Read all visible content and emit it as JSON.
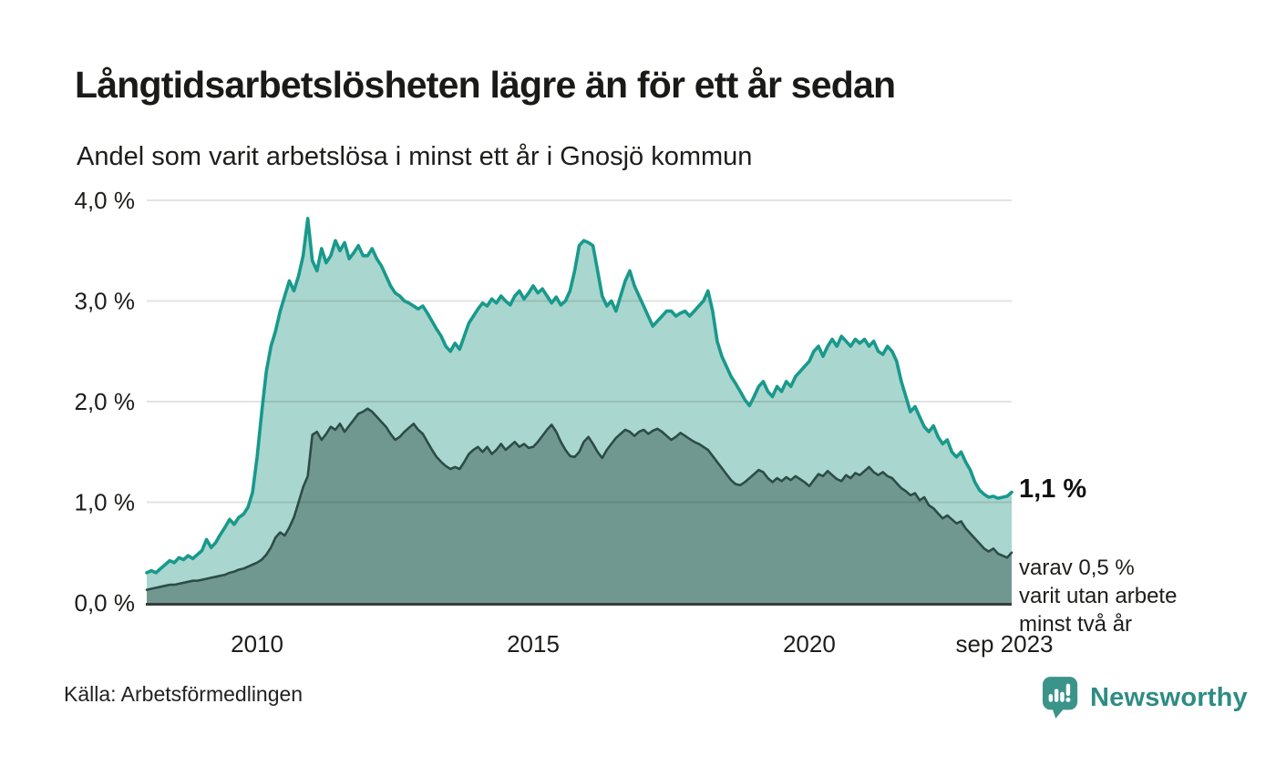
{
  "header": {
    "title": "Långtidsarbetslösheten lägre än för ett år sedan",
    "subtitle": "Andel som varit arbetslösa i minst ett år i Gnosjö kommun"
  },
  "annotation": {
    "value_label": "1,1 %",
    "note_lines": [
      "varav 0,5 %",
      "varit utan arbete",
      "minst två år"
    ]
  },
  "footer": {
    "source": "Källa: Arbetsförmedlingen",
    "brand": "Newsworthy"
  },
  "colors": {
    "series1_line": "#18998C",
    "series1_fill": "#A9D6CE",
    "series2_line": "#2C4C47",
    "series2_fill": "#719890",
    "gridline": "rgba(0,0,0,0.11)",
    "axis": "#3a3a3a",
    "brand_teal": "#3B948A",
    "text": "#1d1d1b"
  },
  "chart_data": {
    "type": "area",
    "title": "Långtidsarbetslösheten lägre än för ett år sedan",
    "subtitle": "Andel som varit arbetslösa i minst ett år i Gnosjö kommun",
    "unit": "%",
    "frequency": "monthly",
    "start": "2008-01",
    "end": "2023-09",
    "ylim": [
      0,
      4
    ],
    "grid": true,
    "legend_position": "none",
    "y_ticks": [
      {
        "value": 4,
        "label": "4,0 %"
      },
      {
        "value": 3,
        "label": "3,0 %"
      },
      {
        "value": 2,
        "label": "2,0 %"
      },
      {
        "value": 1,
        "label": "1,0 %"
      },
      {
        "value": 0,
        "label": "0,0 %"
      }
    ],
    "x_ticks": [
      {
        "index": 24,
        "label": "2010"
      },
      {
        "index": 84,
        "label": "2015"
      },
      {
        "index": 144,
        "label": "2020"
      },
      {
        "index": 188,
        "label": "sep 2023"
      }
    ],
    "end_labels": {
      "series1": "1,1 %",
      "series2": "0,5 %"
    },
    "series": [
      {
        "name": "Andel arbetslösa minst ett år",
        "color": "#18998C",
        "fill": "#A9D6CE",
        "values": [
          0.3,
          0.32,
          0.3,
          0.34,
          0.38,
          0.42,
          0.4,
          0.45,
          0.43,
          0.47,
          0.44,
          0.48,
          0.52,
          0.63,
          0.55,
          0.6,
          0.68,
          0.75,
          0.83,
          0.78,
          0.85,
          0.88,
          0.95,
          1.1,
          1.45,
          1.9,
          2.3,
          2.55,
          2.7,
          2.9,
          3.05,
          3.2,
          3.1,
          3.25,
          3.45,
          3.82,
          3.4,
          3.3,
          3.52,
          3.38,
          3.45,
          3.6,
          3.5,
          3.58,
          3.42,
          3.48,
          3.55,
          3.45,
          3.45,
          3.52,
          3.42,
          3.35,
          3.25,
          3.15,
          3.08,
          3.05,
          3.0,
          2.98,
          2.95,
          2.92,
          2.95,
          2.88,
          2.8,
          2.72,
          2.65,
          2.55,
          2.5,
          2.58,
          2.52,
          2.65,
          2.78,
          2.85,
          2.92,
          2.98,
          2.95,
          3.02,
          2.98,
          3.05,
          3.0,
          2.96,
          3.05,
          3.1,
          3.02,
          3.08,
          3.15,
          3.08,
          3.12,
          3.05,
          2.98,
          3.04,
          2.96,
          3.0,
          3.1,
          3.3,
          3.55,
          3.6,
          3.58,
          3.55,
          3.3,
          3.05,
          2.95,
          3.0,
          2.9,
          3.05,
          3.2,
          3.3,
          3.15,
          3.05,
          2.95,
          2.85,
          2.75,
          2.8,
          2.85,
          2.9,
          2.9,
          2.85,
          2.88,
          2.9,
          2.85,
          2.9,
          2.95,
          3.0,
          3.1,
          2.9,
          2.6,
          2.45,
          2.35,
          2.25,
          2.18,
          2.1,
          2.02,
          1.96,
          2.05,
          2.15,
          2.2,
          2.1,
          2.05,
          2.15,
          2.1,
          2.2,
          2.15,
          2.25,
          2.3,
          2.35,
          2.4,
          2.5,
          2.55,
          2.45,
          2.55,
          2.62,
          2.55,
          2.65,
          2.6,
          2.55,
          2.62,
          2.58,
          2.62,
          2.55,
          2.6,
          2.5,
          2.47,
          2.55,
          2.5,
          2.4,
          2.2,
          2.05,
          1.9,
          1.95,
          1.85,
          1.75,
          1.7,
          1.76,
          1.65,
          1.58,
          1.62,
          1.5,
          1.45,
          1.5,
          1.4,
          1.32,
          1.2,
          1.12,
          1.08,
          1.05,
          1.06,
          1.04,
          1.05,
          1.06,
          1.1
        ]
      },
      {
        "name": "varav arbetslösa minst två år",
        "color": "#2C4C47",
        "fill": "#719890",
        "values": [
          0.13,
          0.14,
          0.15,
          0.16,
          0.17,
          0.18,
          0.18,
          0.19,
          0.2,
          0.21,
          0.22,
          0.22,
          0.23,
          0.24,
          0.25,
          0.26,
          0.27,
          0.28,
          0.3,
          0.31,
          0.33,
          0.34,
          0.36,
          0.38,
          0.4,
          0.43,
          0.48,
          0.55,
          0.65,
          0.7,
          0.67,
          0.75,
          0.85,
          1.0,
          1.15,
          1.26,
          1.67,
          1.7,
          1.62,
          1.68,
          1.75,
          1.72,
          1.78,
          1.7,
          1.76,
          1.82,
          1.88,
          1.9,
          1.93,
          1.9,
          1.85,
          1.8,
          1.75,
          1.68,
          1.62,
          1.65,
          1.7,
          1.74,
          1.78,
          1.72,
          1.68,
          1.6,
          1.52,
          1.45,
          1.4,
          1.36,
          1.33,
          1.35,
          1.33,
          1.4,
          1.48,
          1.52,
          1.55,
          1.5,
          1.55,
          1.48,
          1.52,
          1.58,
          1.52,
          1.56,
          1.6,
          1.55,
          1.58,
          1.54,
          1.55,
          1.6,
          1.66,
          1.72,
          1.77,
          1.7,
          1.6,
          1.52,
          1.46,
          1.45,
          1.5,
          1.6,
          1.65,
          1.58,
          1.5,
          1.44,
          1.52,
          1.58,
          1.64,
          1.68,
          1.72,
          1.7,
          1.66,
          1.7,
          1.72,
          1.68,
          1.71,
          1.73,
          1.7,
          1.66,
          1.62,
          1.65,
          1.69,
          1.66,
          1.63,
          1.6,
          1.58,
          1.55,
          1.52,
          1.46,
          1.4,
          1.34,
          1.28,
          1.22,
          1.18,
          1.17,
          1.2,
          1.24,
          1.28,
          1.32,
          1.3,
          1.24,
          1.2,
          1.24,
          1.21,
          1.25,
          1.22,
          1.26,
          1.23,
          1.2,
          1.16,
          1.22,
          1.28,
          1.26,
          1.31,
          1.27,
          1.23,
          1.21,
          1.27,
          1.24,
          1.29,
          1.27,
          1.31,
          1.35,
          1.3,
          1.27,
          1.3,
          1.26,
          1.24,
          1.19,
          1.14,
          1.11,
          1.07,
          1.09,
          1.02,
          1.05,
          0.97,
          0.94,
          0.89,
          0.84,
          0.87,
          0.83,
          0.79,
          0.81,
          0.74,
          0.69,
          0.64,
          0.59,
          0.54,
          0.51,
          0.54,
          0.49,
          0.47,
          0.45,
          0.5
        ]
      }
    ]
  }
}
